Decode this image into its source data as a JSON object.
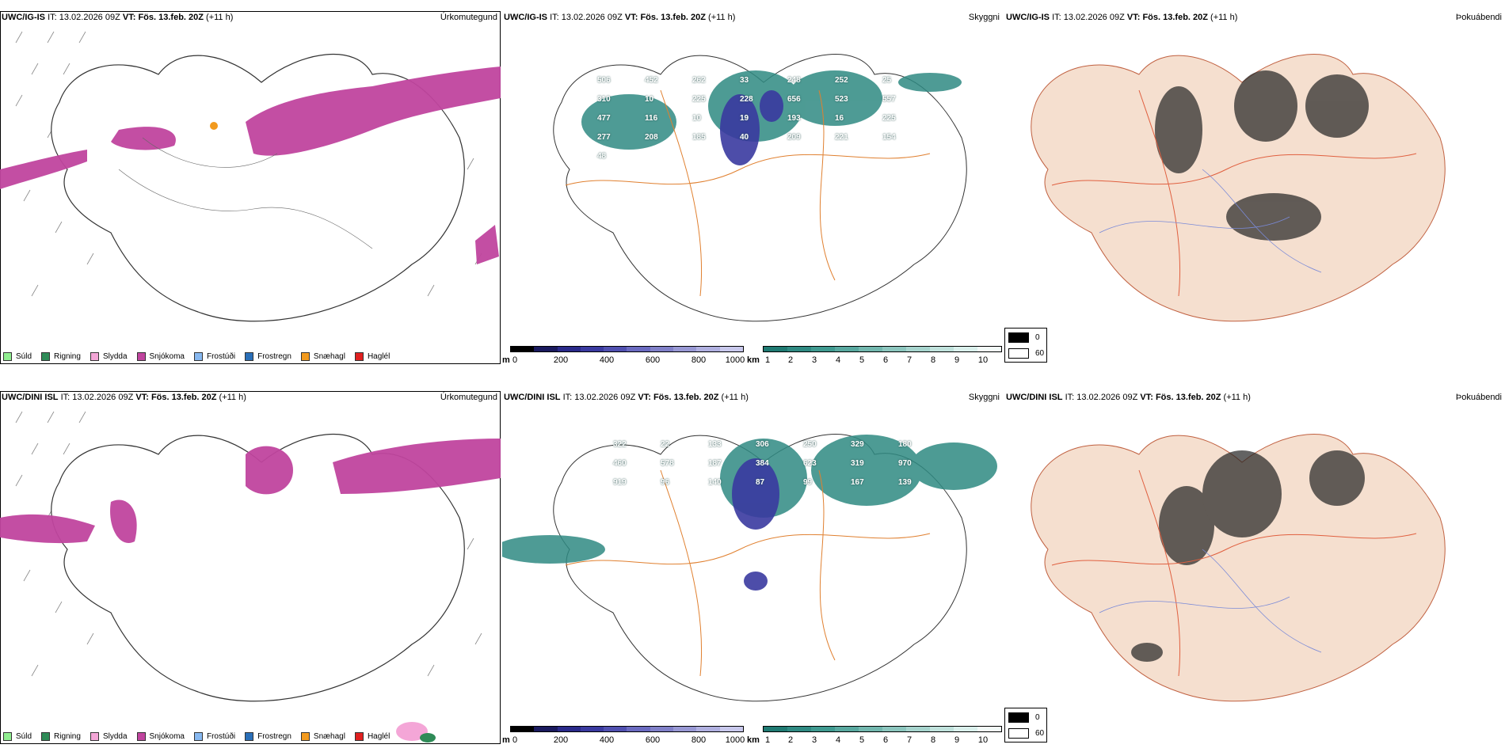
{
  "rows": [
    {
      "model": "UWC/IG-IS",
      "it_label": "IT:",
      "it_value": "13.02.2026 09Z",
      "vt_label": "VT:",
      "vt_value": "Fös. 13.feb. 20Z",
      "lead": "(+11 h)",
      "panels": {
        "precip": "Úrkomutegund",
        "cloud": "Skyggni",
        "fog": "Þokuábendi"
      }
    },
    {
      "model": "UWC/DINI ISL",
      "it_label": "IT:",
      "it_value": "13.02.2026 09Z",
      "vt_label": "VT:",
      "vt_value": "Fös. 13.feb. 20Z",
      "lead": "(+11 h)",
      "panels": {
        "precip": "Úrkomutegund",
        "cloud": "Skyggni",
        "fog": "Þokuábendi"
      }
    }
  ],
  "precip_legend": [
    {
      "label": "Súld",
      "color": "#90ee90"
    },
    {
      "label": "Rigning",
      "color": "#2e8b57"
    },
    {
      "label": "Slydda",
      "color": "#f4a6d7"
    },
    {
      "label": "Snjókoma",
      "color": "#c0449e"
    },
    {
      "label": "Frostúði",
      "color": "#87b8f0"
    },
    {
      "label": "Frostregn",
      "color": "#2a6fb8"
    },
    {
      "label": "Snæhagl",
      "color": "#f29a1e"
    },
    {
      "label": "Haglél",
      "color": "#e02020"
    }
  ],
  "height_bar": {
    "unit": "m",
    "ticks": [
      "0",
      "200",
      "400",
      "600",
      "800",
      "1000"
    ],
    "colors": [
      "#000000",
      "#1a1a5e",
      "#2a2a8a",
      "#3a3aa0",
      "#5050b0",
      "#6a6ac0",
      "#8080c8",
      "#9898d4",
      "#b0b0e0",
      "#c8c8ec"
    ]
  },
  "base_bar": {
    "unit": "km",
    "ticks": [
      "1",
      "2",
      "3",
      "4",
      "5",
      "6",
      "7",
      "8",
      "9",
      "10"
    ],
    "colors": [
      "#1f7a72",
      "#2f8a82",
      "#3f9a90",
      "#58a89f",
      "#72b7ae",
      "#8cc6be",
      "#a6d4cd",
      "#c0e2dc",
      "#daf0ec",
      "#f2faf8"
    ]
  },
  "fog_legend": [
    {
      "label": "0",
      "color": "#000000"
    },
    {
      "label": "60",
      "color": "#ffffff"
    }
  ],
  "cloud_labels_top": [
    "506",
    "452",
    "262",
    "33",
    "248",
    "252",
    "25",
    "310",
    "10",
    "225",
    "228",
    "656",
    "523",
    "557",
    "477",
    "116",
    "10",
    "19",
    "193",
    "16",
    "225",
    "277",
    "208",
    "185",
    "40",
    "209",
    "221",
    "154",
    "48"
  ],
  "cloud_labels_bottom": [
    "322",
    "22",
    "133",
    "306",
    "250",
    "329",
    "180",
    "460",
    "578",
    "187",
    "384",
    "623",
    "319",
    "970",
    "919",
    "96",
    "140",
    "87",
    "99",
    "167",
    "139"
  ]
}
